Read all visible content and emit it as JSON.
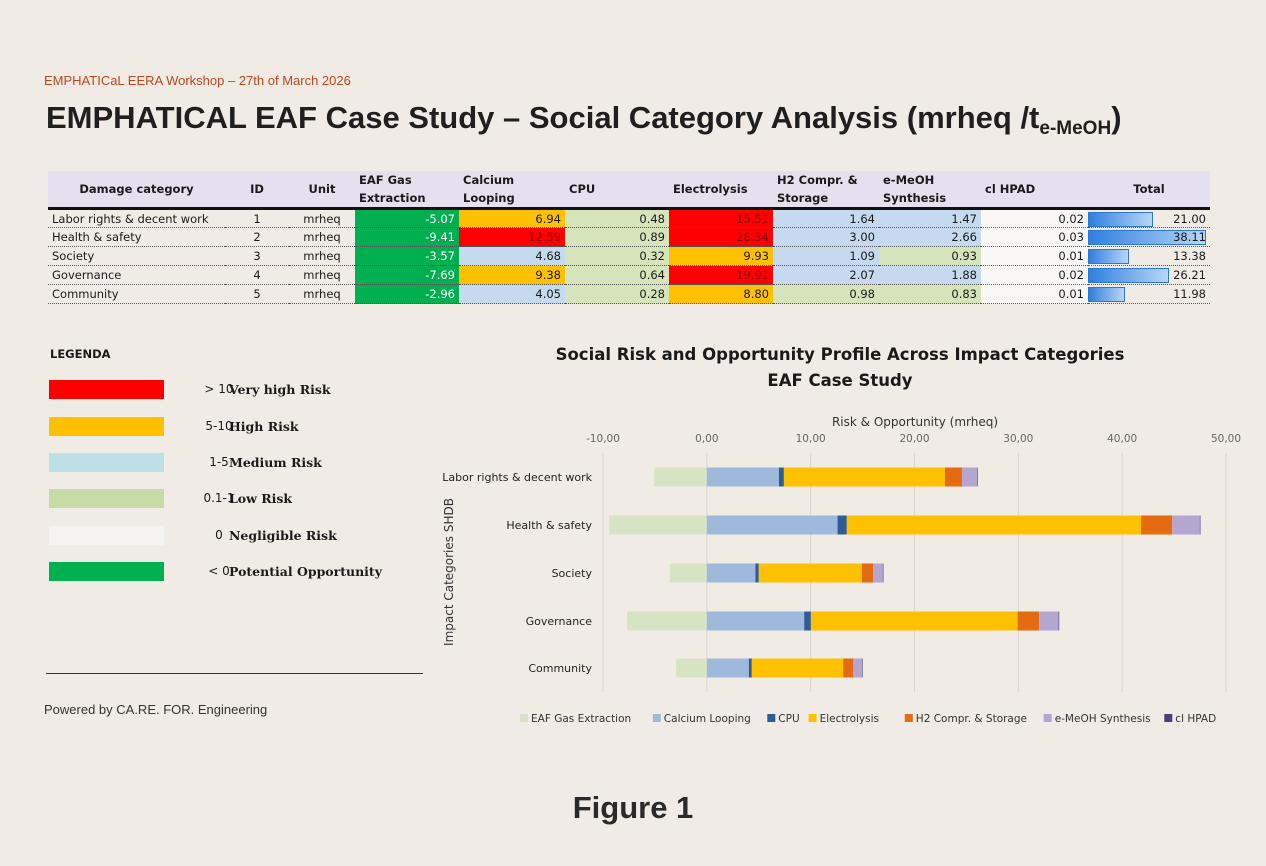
{
  "header": {
    "workshop": "EMPHATICaL EERA Workshop – 27th of March 2026",
    "title_main": "EMPHATICAL EAF Case Study – Social Category Analysis (mrheq /t",
    "title_sub": "e-MeOH",
    "title_close": ")"
  },
  "table": {
    "columns": [
      "Damage category",
      "ID",
      "Unit",
      "EAF Gas Extraction",
      "Calcium Looping",
      "CPU",
      "Electrolysis",
      "H2 Compr. & Storage",
      "e-MeOH Synthesis",
      "cl HPAD",
      "Total"
    ],
    "rows": [
      {
        "name": "Labor rights & decent work",
        "id": "1",
        "unit": "mrheq",
        "values": [
          "-5.07",
          "6.94",
          "0.48",
          "15.51",
          "1.64",
          "1.47",
          "0.02"
        ],
        "risk": [
          "opp",
          "h",
          "l",
          "vh",
          "m",
          "m",
          "n"
        ],
        "total": "21.00",
        "total_num": 21.0
      },
      {
        "name": "Health & safety",
        "id": "2",
        "unit": "mrheq",
        "values": [
          "-9.41",
          "12.59",
          "0.89",
          "28.34",
          "3.00",
          "2.66",
          "0.03"
        ],
        "risk": [
          "opp",
          "vh",
          "l",
          "vh",
          "m",
          "m",
          "n"
        ],
        "total": "38.11",
        "total_num": 38.11
      },
      {
        "name": "Society",
        "id": "3",
        "unit": "mrheq",
        "values": [
          "-3.57",
          "4.68",
          "0.32",
          "9.93",
          "1.09",
          "0.93",
          "0.01"
        ],
        "risk": [
          "opp",
          "m",
          "l",
          "h",
          "m",
          "l",
          "n"
        ],
        "total": "13.38",
        "total_num": 13.38
      },
      {
        "name": "Governance",
        "id": "4",
        "unit": "mrheq",
        "values": [
          "-7.69",
          "9.38",
          "0.64",
          "19.91",
          "2.07",
          "1.88",
          "0.02"
        ],
        "risk": [
          "opp",
          "h",
          "l",
          "vh",
          "m",
          "m",
          "n"
        ],
        "total": "26.21",
        "total_num": 26.21
      },
      {
        "name": "Community",
        "id": "5",
        "unit": "mrheq",
        "values": [
          "-2.96",
          "4.05",
          "0.28",
          "8.80",
          "0.98",
          "0.83",
          "0.01"
        ],
        "risk": [
          "opp",
          "m",
          "l",
          "h",
          "l",
          "l",
          "n"
        ],
        "total": "11.98",
        "total_num": 11.98
      }
    ]
  },
  "legend": {
    "title": "LEGENDA",
    "items": [
      {
        "color": "#ff0000",
        "range": "> 10",
        "label": "Very high Risk"
      },
      {
        "color": "#ffc000",
        "range": "5-10",
        "label": "High Risk"
      },
      {
        "color": "#bcdfe8",
        "range": "1-5",
        "label": "Medium Risk"
      },
      {
        "color": "#c7dca4",
        "range": "0.1-1",
        "label": "Low Risk"
      },
      {
        "color": "#f5f3f0",
        "range": "0",
        "label": "Negligible Risk"
      },
      {
        "color": "#00b050",
        "range": "< 0",
        "label": "Potential Opportunity"
      }
    ]
  },
  "footer": {
    "powered": "Powered by CA.RE. FOR. Engineering",
    "figure": "Figure 1"
  },
  "chart_data": {
    "type": "bar",
    "orientation": "horizontal",
    "stacked": true,
    "title": "Social Risk and Opportunity Profile Across Impact Categories",
    "subtitle": "EAF Case Study",
    "xlabel": "Risk & Opportunity (mrheq)",
    "ylabel": "Impact Categories SHDB",
    "xlim": [
      -10,
      50
    ],
    "xticks": [
      "-10,00",
      "0,00",
      "10,00",
      "20,00",
      "30,00",
      "40,00",
      "50,00"
    ],
    "xtick_values": [
      -10,
      0,
      10,
      20,
      30,
      40,
      50
    ],
    "legend_position": "bottom",
    "categories": [
      "Labor rights & decent work",
      "Health & safety",
      "Society",
      "Governance",
      "Community"
    ],
    "series": [
      {
        "name": "EAF Gas Extraction",
        "color": "#d7e4c3",
        "values": [
          -5.07,
          -9.41,
          -3.57,
          -7.69,
          -2.96
        ]
      },
      {
        "name": "Calcium Looping",
        "color": "#9fb9dc",
        "values": [
          6.94,
          12.59,
          4.68,
          9.38,
          4.05
        ]
      },
      {
        "name": "CPU",
        "color": "#2e5c96",
        "values": [
          0.48,
          0.89,
          0.32,
          0.64,
          0.28
        ]
      },
      {
        "name": "Electrolysis",
        "color": "#ffc000",
        "values": [
          15.51,
          28.34,
          9.93,
          19.91,
          8.8
        ]
      },
      {
        "name": "H2 Compr. & Storage",
        "color": "#e46b12",
        "values": [
          1.64,
          3.0,
          1.09,
          2.07,
          0.98
        ]
      },
      {
        "name": "e-MeOH Synthesis",
        "color": "#b4a6cf",
        "values": [
          1.47,
          2.66,
          0.93,
          1.88,
          0.83
        ]
      },
      {
        "name": "cl HPAD",
        "color": "#4a3e80",
        "values": [
          0.02,
          0.03,
          0.01,
          0.02,
          0.01
        ]
      }
    ]
  }
}
